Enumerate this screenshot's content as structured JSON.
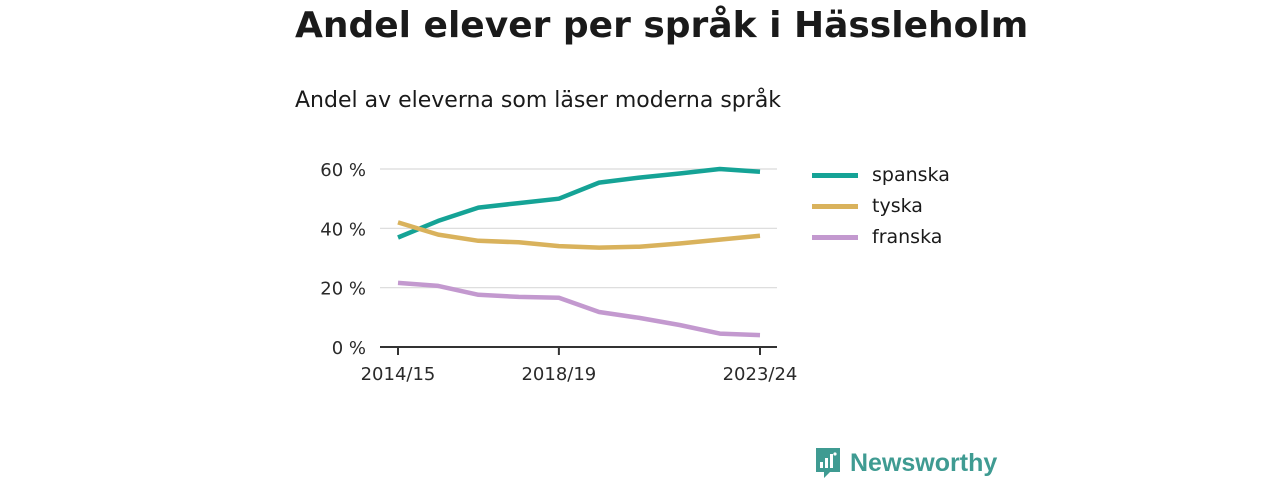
{
  "title": "Andel elever per språk i Hässleholm",
  "subtitle": "Andel av eleverna som läser moderna språk",
  "brand": {
    "name": "Newsworthy",
    "icon": "newsworthy-logo-icon",
    "color": "#3f9b92"
  },
  "chart_data": {
    "type": "line",
    "title": "Andel elever per språk i Hässleholm",
    "subtitle": "Andel av eleverna som läser moderna språk",
    "x": [
      "2014/15",
      "2015/16",
      "2016/17",
      "2017/18",
      "2018/19",
      "2019/20",
      "2020/21",
      "2021/22",
      "2022/23",
      "2023/24"
    ],
    "x_tick_labels": [
      "2014/15",
      "2018/19",
      "2023/24"
    ],
    "ylim": [
      0,
      60
    ],
    "y_ticks": [
      0,
      20,
      40,
      60
    ],
    "y_tick_labels": [
      "0 %",
      "20 %",
      "40 %",
      "60 %"
    ],
    "grid": true,
    "legend_position": "right",
    "series": [
      {
        "name": "spanska",
        "color": "#15a396",
        "values": [
          36.9,
          42.5,
          47.0,
          48.5,
          50.0,
          55.4,
          57.1,
          58.5,
          60.0,
          59.1
        ]
      },
      {
        "name": "tyska",
        "color": "#d9b25c",
        "values": [
          42.0,
          37.9,
          35.8,
          35.3,
          34.0,
          33.5,
          33.8,
          34.9,
          36.2,
          37.5
        ]
      },
      {
        "name": "franska",
        "color": "#c399cf",
        "values": [
          21.6,
          20.6,
          17.6,
          16.9,
          16.6,
          11.8,
          9.8,
          7.4,
          4.5,
          4.0
        ]
      }
    ]
  }
}
